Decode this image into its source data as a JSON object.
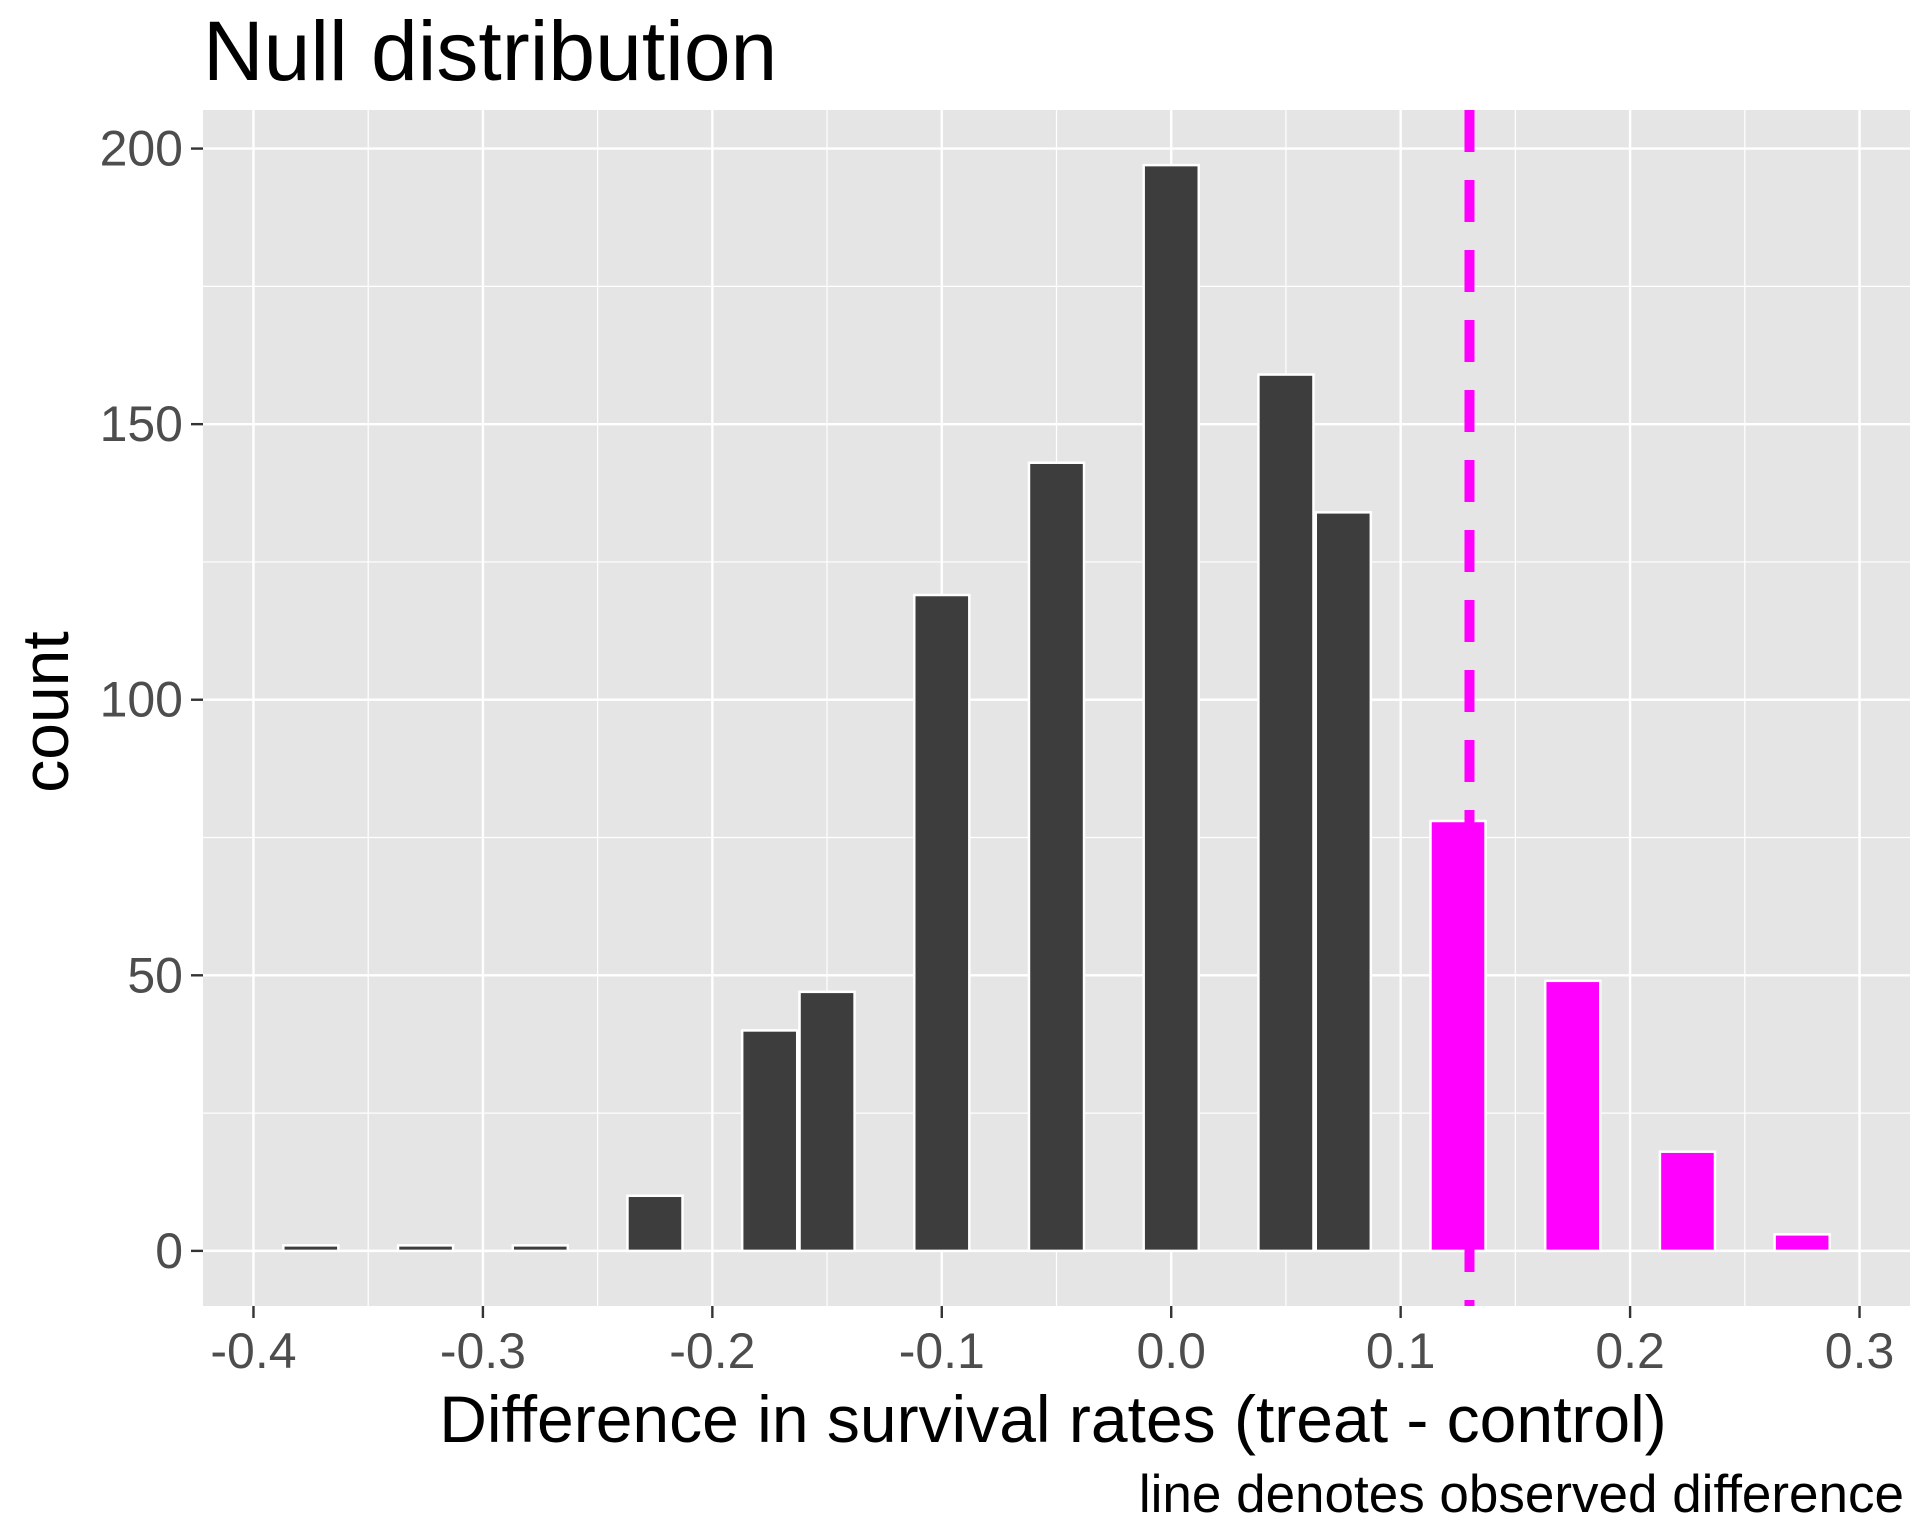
{
  "chart_data": {
    "type": "bar",
    "title": "Null distribution",
    "xlabel": "Difference in survival rates (treat - control)",
    "ylabel": "count",
    "caption": "line denotes observed difference",
    "xlim": [
      -0.422,
      0.322
    ],
    "ylim": [
      -10,
      207
    ],
    "bin_width": 0.024,
    "x_ticks": [
      -0.4,
      -0.3,
      -0.2,
      -0.1,
      0.0,
      0.1,
      0.2,
      0.3
    ],
    "x_tick_labels": [
      "-0.4",
      "-0.3",
      "-0.2",
      "-0.1",
      "0.0",
      "0.1",
      "0.2",
      "0.3"
    ],
    "y_ticks": [
      0,
      50,
      100,
      150,
      200
    ],
    "y_tick_labels": [
      "0",
      "50",
      "100",
      "150",
      "200"
    ],
    "grid": true,
    "observed_difference": 0.13,
    "colors": {
      "panel_background": "#e5e5e5",
      "grid": "#ffffff",
      "bar_default": "#3d3d3d",
      "bar_extreme": "#ff00ff",
      "bar_outline": "#ffffff",
      "observed_line": "#ff00ff"
    },
    "bins": [
      {
        "x": -0.375,
        "count": 1,
        "extreme": false
      },
      {
        "x": -0.325,
        "count": 1,
        "extreme": false
      },
      {
        "x": -0.275,
        "count": 1,
        "extreme": false
      },
      {
        "x": -0.225,
        "count": 10,
        "extreme": false
      },
      {
        "x": -0.175,
        "count": 40,
        "extreme": false
      },
      {
        "x": -0.15,
        "count": 47,
        "extreme": false
      },
      {
        "x": -0.1,
        "count": 119,
        "extreme": false
      },
      {
        "x": -0.05,
        "count": 143,
        "extreme": false
      },
      {
        "x": 0.0,
        "count": 197,
        "extreme": false
      },
      {
        "x": 0.05,
        "count": 159,
        "extreme": false
      },
      {
        "x": 0.075,
        "count": 134,
        "extreme": false
      },
      {
        "x": 0.125,
        "count": 78,
        "extreme": true
      },
      {
        "x": 0.175,
        "count": 49,
        "extreme": true
      },
      {
        "x": 0.225,
        "count": 18,
        "extreme": true
      },
      {
        "x": 0.275,
        "count": 3,
        "extreme": true
      }
    ]
  }
}
